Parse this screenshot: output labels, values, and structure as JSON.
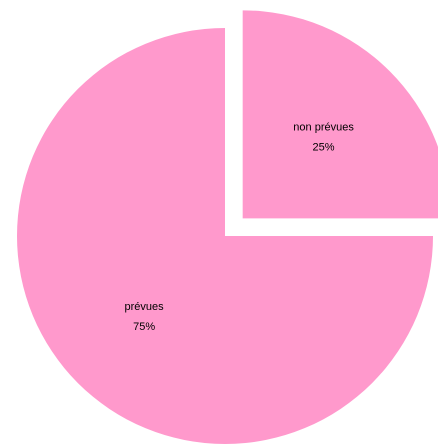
{
  "chart_data": {
    "type": "pie",
    "categories": [
      "non prévues",
      "prévues"
    ],
    "values": [
      25,
      75
    ],
    "value_labels": [
      "25%",
      "75%"
    ],
    "colors": [
      "#ff99cc",
      "#ff99cc"
    ],
    "explode": [
      true,
      false
    ]
  }
}
